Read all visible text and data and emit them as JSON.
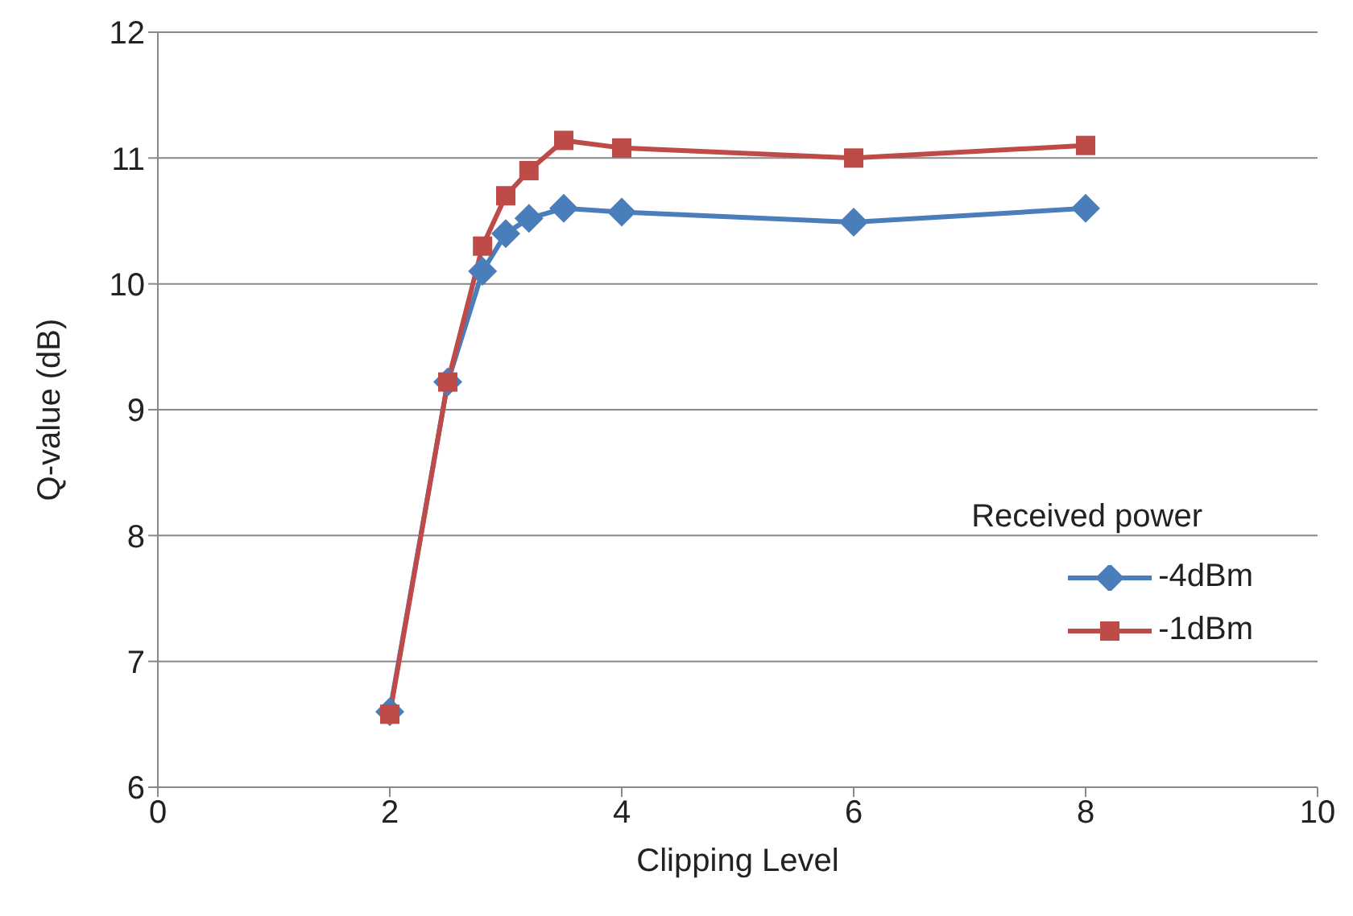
{
  "chart_data": {
    "type": "line",
    "xlabel": "Clipping Level",
    "ylabel": "Q-value (dB)",
    "legend_title": "Received power",
    "xlim": [
      0,
      10
    ],
    "xticks": [
      0,
      2,
      4,
      6,
      8,
      10
    ],
    "ylim": [
      6,
      12
    ],
    "yticks": [
      6,
      7,
      8,
      9,
      10,
      11,
      12
    ],
    "grid": "y",
    "legend": "right",
    "series": [
      {
        "name": "-4dBm",
        "color": "#4a7ebb",
        "marker": "diamond",
        "x": [
          2,
          2.5,
          2.8,
          3,
          3.2,
          3.5,
          4,
          6,
          8
        ],
        "values": [
          6.6,
          9.22,
          10.1,
          10.4,
          10.52,
          10.6,
          10.57,
          10.49,
          10.6
        ]
      },
      {
        "name": "-1dBm",
        "color": "#be4b48",
        "marker": "square",
        "x": [
          2,
          2.5,
          2.8,
          3,
          3.2,
          3.5,
          4,
          6,
          8
        ],
        "values": [
          6.58,
          9.22,
          10.3,
          10.7,
          10.9,
          11.14,
          11.08,
          11,
          11.1
        ]
      }
    ]
  }
}
